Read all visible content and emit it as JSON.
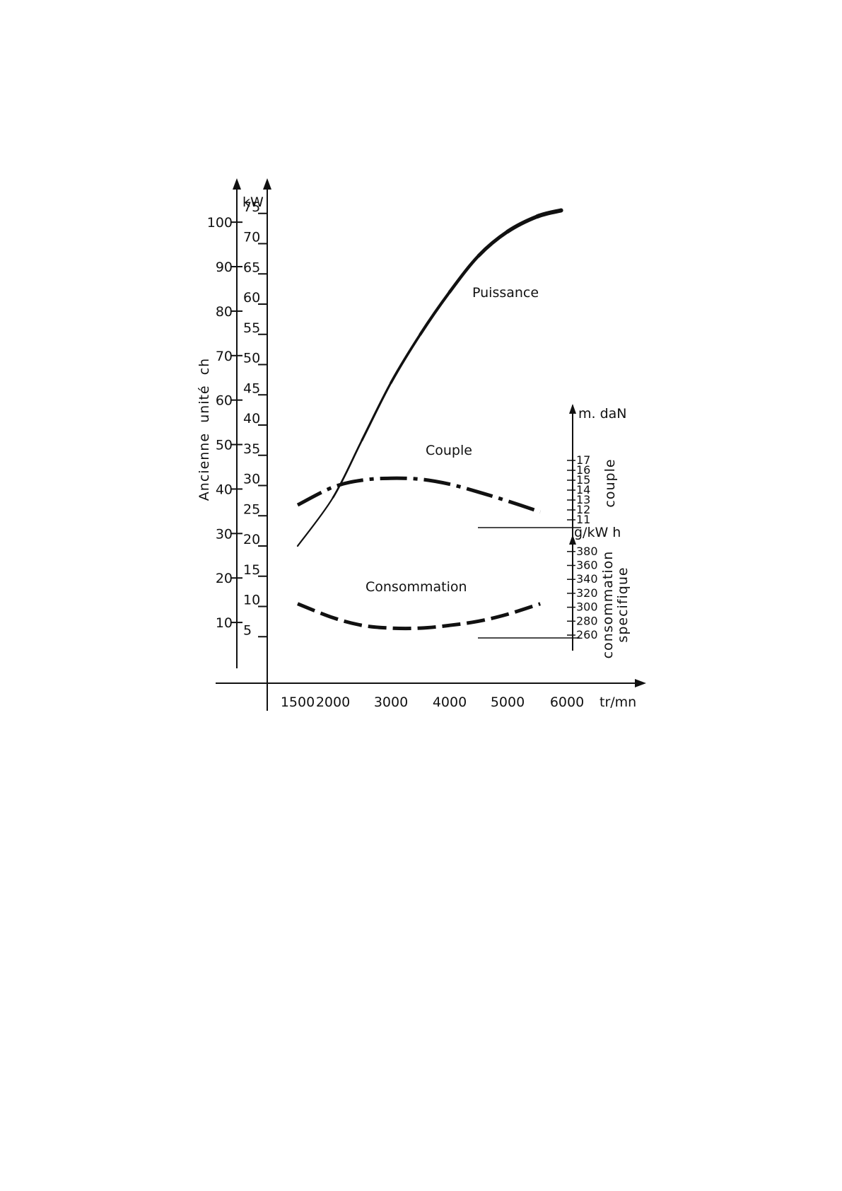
{
  "chart_data": {
    "type": "line",
    "title": "",
    "x": {
      "label": "tr/mn",
      "ticks": [
        1500,
        2000,
        3000,
        4000,
        5000,
        6000
      ],
      "tick_labels": [
        "1500",
        "2000",
        "3000",
        "4000",
        "5000",
        "6000"
      ],
      "range": [
        1000,
        6500
      ]
    },
    "axes": {
      "ch": {
        "label": "Ancienne  unité  ch",
        "ticks": [
          10,
          20,
          30,
          40,
          50,
          60,
          70,
          80,
          90,
          100
        ],
        "tick_labels": [
          "10",
          "20",
          "30",
          "40",
          "50",
          "60",
          "70",
          "80",
          "90",
          "100"
        ]
      },
      "kw": {
        "label": "kW",
        "ticks": [
          5,
          10,
          15,
          20,
          25,
          30,
          35,
          40,
          45,
          50,
          55,
          60,
          65,
          70,
          75
        ],
        "tick_labels": [
          "5",
          "10",
          "15",
          "20",
          "25",
          "30",
          "35",
          "40",
          "45",
          "50",
          "55",
          "60",
          "65",
          "70",
          "75"
        ],
        "range": [
          0,
          80
        ]
      },
      "couple": {
        "unit": "m. daN",
        "label": "couple",
        "ticks": [
          11,
          12,
          13,
          14,
          15,
          16,
          17
        ],
        "tick_labels": [
          "11",
          "12",
          "13",
          "14",
          "15",
          "16",
          "17"
        ]
      },
      "consommation": {
        "unit": "g/kW h",
        "label": "consommation\nspecifique",
        "ticks": [
          260,
          280,
          300,
          320,
          340,
          360,
          380
        ],
        "tick_labels": [
          "260",
          "280",
          "300",
          "320",
          "340",
          "360",
          "380"
        ]
      }
    },
    "series": [
      {
        "name": "Puissance",
        "axis": "kw",
        "style": "solid",
        "points": [
          [
            1500,
            20
          ],
          [
            2000,
            28
          ],
          [
            2500,
            37.5
          ],
          [
            3000,
            47
          ],
          [
            3500,
            55
          ],
          [
            4000,
            62
          ],
          [
            4500,
            68
          ],
          [
            5000,
            72
          ],
          [
            5500,
            74.5
          ],
          [
            5900,
            75.5
          ]
        ]
      },
      {
        "name": "Couple",
        "axis": "couple",
        "style": "dash-dot",
        "points": [
          [
            1500,
            12.5
          ],
          [
            2000,
            14.3
          ],
          [
            2500,
            15.0
          ],
          [
            3000,
            15.2
          ],
          [
            3500,
            15.1
          ],
          [
            4000,
            14.6
          ],
          [
            4500,
            13.8
          ],
          [
            5000,
            12.9
          ],
          [
            5550,
            11.8
          ]
        ]
      },
      {
        "name": "Consommation",
        "axis": "consommation",
        "style": "dashed",
        "points": [
          [
            1500,
            305
          ],
          [
            2000,
            285
          ],
          [
            2500,
            274
          ],
          [
            3000,
            270
          ],
          [
            3500,
            270
          ],
          [
            4000,
            274
          ],
          [
            4500,
            280
          ],
          [
            5000,
            290
          ],
          [
            5550,
            305
          ]
        ]
      }
    ],
    "grid": false,
    "legend": "none"
  }
}
